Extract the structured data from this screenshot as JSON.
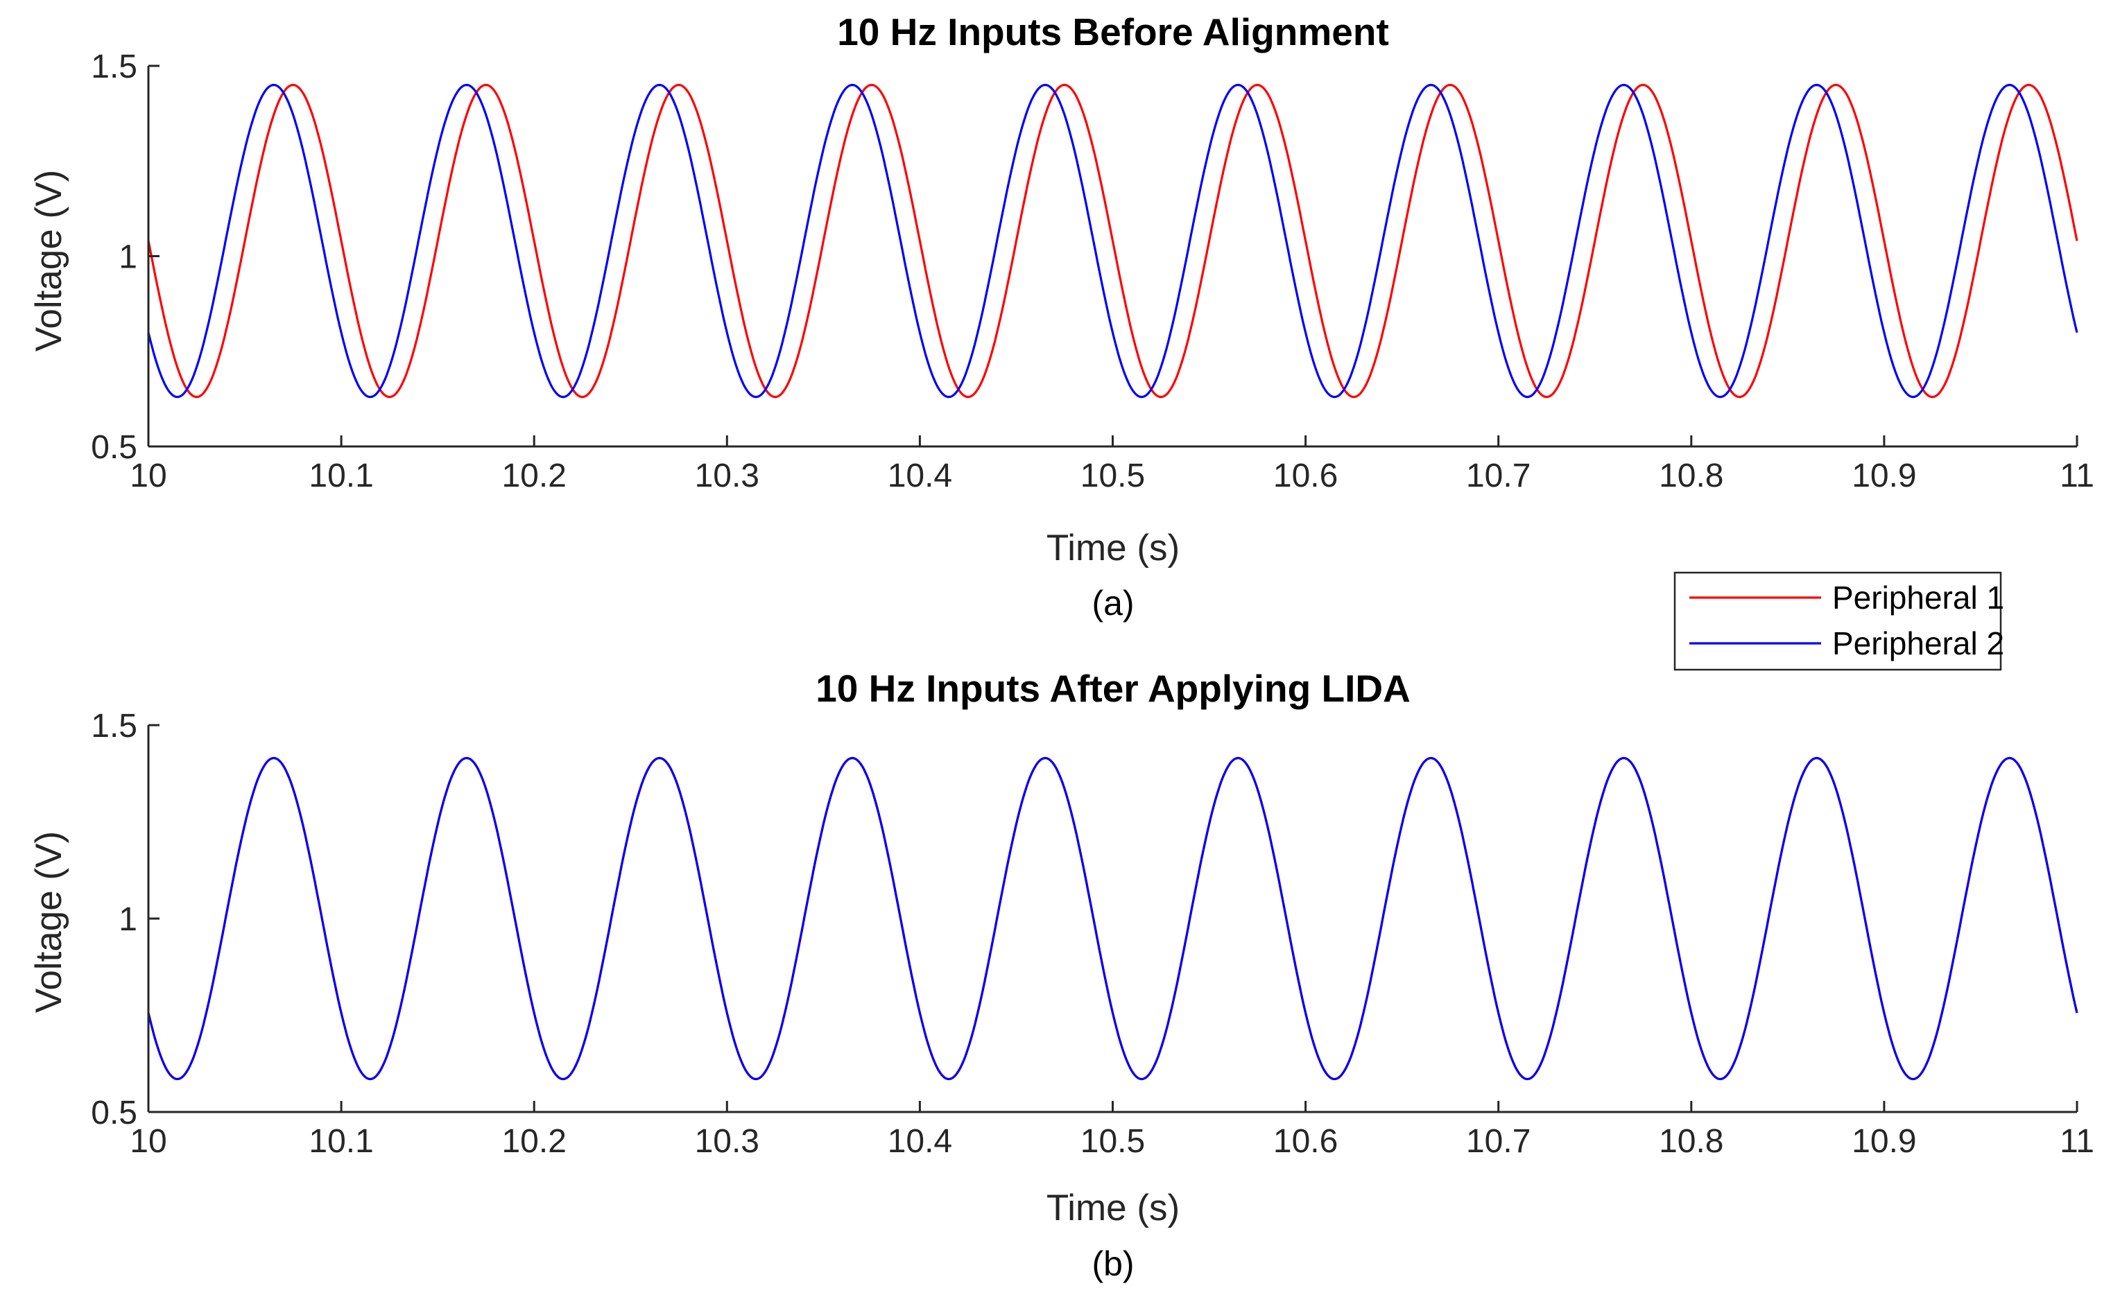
{
  "chart_data": [
    {
      "type": "line",
      "title": "10 Hz Inputs Before Alignment",
      "xlabel": "Time (s)",
      "ylabel": "Voltage (V)",
      "caption": "(a)",
      "xlim": [
        10,
        11
      ],
      "ylim": [
        0.5,
        1.5
      ],
      "xticks": [
        "10",
        "10.1",
        "10.2",
        "10.3",
        "10.4",
        "10.5",
        "10.6",
        "10.7",
        "10.8",
        "10.9",
        "11"
      ],
      "yticks": [
        "0.5",
        "1",
        "1.5"
      ],
      "grid": false,
      "legend_position": "below-right",
      "series": [
        {
          "name": "Peripheral 1",
          "color": "#ff0000",
          "frequency_hz": 10,
          "offset": 1.04,
          "amplitude": 0.41,
          "peak_time": 10.075
        },
        {
          "name": "Peripheral 2",
          "color": "#0000ff",
          "frequency_hz": 10,
          "offset": 1.04,
          "amplitude": 0.41,
          "peak_time": 10.065
        }
      ]
    },
    {
      "type": "line",
      "title": "10 Hz Inputs After Applying LIDA",
      "xlabel": "Time (s)",
      "ylabel": "Voltage (V)",
      "caption": "(b)",
      "xlim": [
        10,
        11
      ],
      "ylim": [
        0.5,
        1.5
      ],
      "xticks": [
        "10",
        "10.1",
        "10.2",
        "10.3",
        "10.4",
        "10.5",
        "10.6",
        "10.7",
        "10.8",
        "10.9",
        "11"
      ],
      "yticks": [
        "0.5",
        "1",
        "1.5"
      ],
      "grid": false,
      "series": [
        {
          "name": "Peripheral 1",
          "color": "#ff0000",
          "frequency_hz": 10,
          "offset": 1.0,
          "amplitude": 0.415,
          "peak_time": 10.065
        },
        {
          "name": "Peripheral 2",
          "color": "#0000ff",
          "frequency_hz": 10,
          "offset": 1.0,
          "amplitude": 0.415,
          "peak_time": 10.065
        }
      ]
    }
  ],
  "legend": {
    "entries": [
      {
        "label": "Peripheral 1",
        "color": "#ff0000"
      },
      {
        "label": "Peripheral 2",
        "color": "#0000ff"
      }
    ]
  }
}
